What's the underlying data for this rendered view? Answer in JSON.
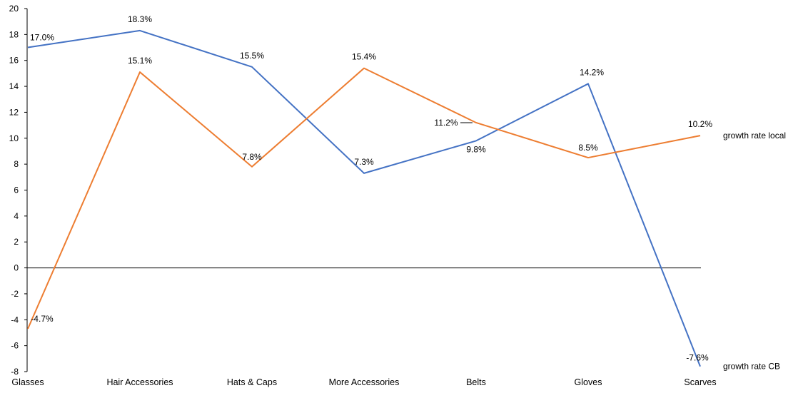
{
  "chart_data": {
    "type": "line",
    "title": "",
    "xlabel": "",
    "ylabel": "",
    "categories": [
      "Glasses",
      "Hair Accessories",
      "Hats & Caps",
      "More Accessories",
      "Belts",
      "Gloves",
      "Scarves"
    ],
    "ylim": [
      -8,
      20
    ],
    "yticks": [
      -8,
      -6,
      -4,
      -2,
      0,
      2,
      4,
      6,
      8,
      10,
      12,
      14,
      16,
      18,
      20
    ],
    "grid": false,
    "legend": "series labels at right end of lines",
    "series": [
      {
        "name": "growth rate CB",
        "color": "#4472C4",
        "values": [
          17.0,
          18.3,
          15.5,
          7.3,
          9.8,
          14.2,
          -7.6
        ],
        "labels": [
          "17.0%",
          "18.3%",
          "15.5%",
          "7.3%",
          "9.8%",
          "14.2%",
          "-7.6%"
        ]
      },
      {
        "name": "growth rate local",
        "color": "#ED7D31",
        "values": [
          -4.7,
          15.1,
          7.8,
          15.4,
          11.2,
          8.5,
          10.2
        ],
        "labels": [
          "-4.7%",
          "15.1%",
          "7.8%",
          "15.4%",
          "11.2%",
          "8.5%",
          "10.2%"
        ]
      }
    ]
  }
}
